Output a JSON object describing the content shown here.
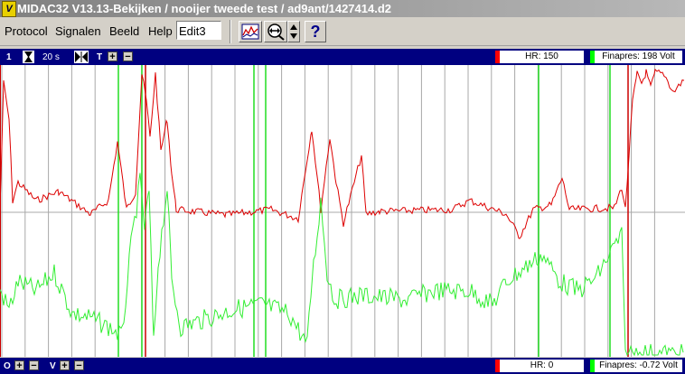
{
  "window": {
    "title": "MIDAC32 V13.13-Bekijken / nooijer tweede test / ad9ant/1427414.d2",
    "icon": "midac-app-icon"
  },
  "menu": {
    "items": [
      "Protocol",
      "Signalen",
      "Beeld",
      "Help"
    ],
    "edit_value": "Edit3"
  },
  "toolbar": {
    "icons": [
      "chart-icon",
      "zoom-icon",
      "spin-updown-icon",
      "help-icon"
    ],
    "help_label": "?"
  },
  "top_controls": {
    "channel_number": "1",
    "time_window": "20 s",
    "t_label": "T",
    "hr_readout": "HR: 150",
    "finapres_readout": "Finapres: 198 Volt"
  },
  "bottom_controls": {
    "o_label": "O",
    "v_label": "V",
    "hr_readout": "HR: 0",
    "finapres_readout": "Finapres: -0.72 Volt"
  },
  "colors": {
    "hr": "#ff0000",
    "finapres": "#00ff00",
    "bar": "#000080",
    "grid": "#a0a0a0"
  },
  "chart_data": {
    "type": "line",
    "series": [
      {
        "name": "HR",
        "color": "#cc0000"
      },
      {
        "name": "Finapres",
        "color": "#33ee33"
      }
    ]
  }
}
